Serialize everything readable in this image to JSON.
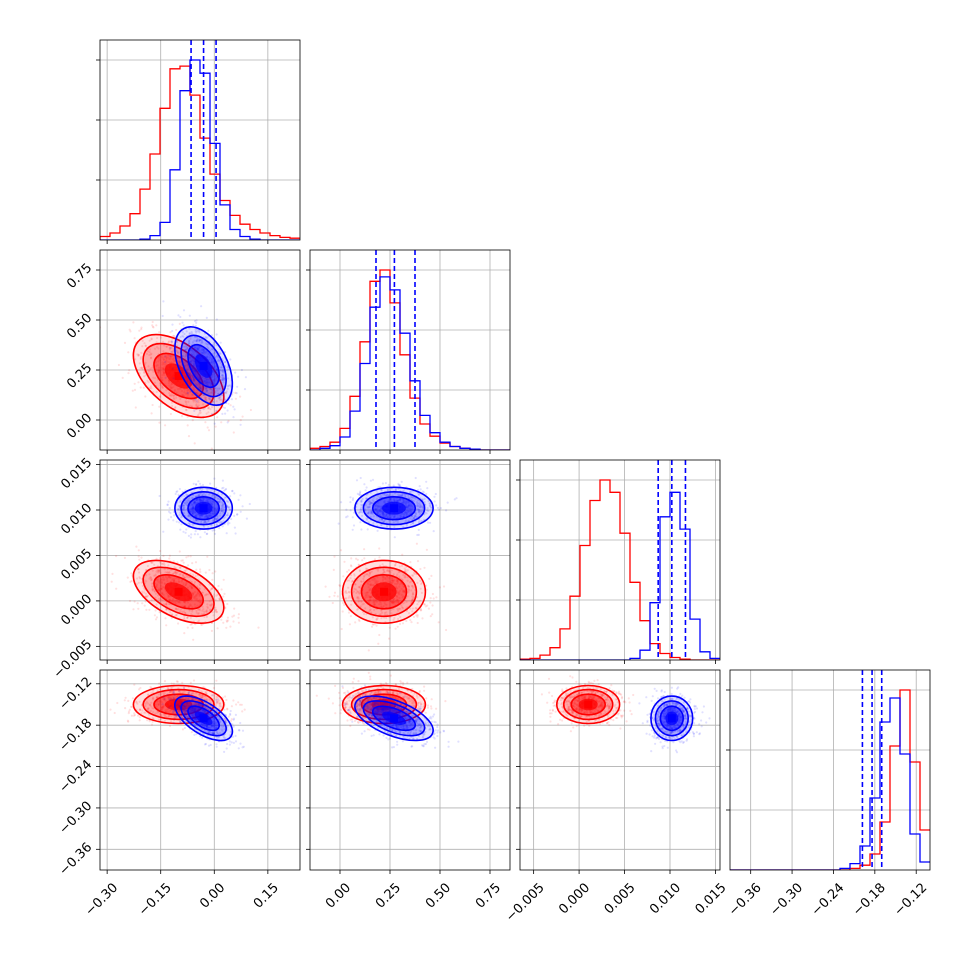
{
  "chart_data": {
    "type": "corner",
    "parameters": 4,
    "grid": true,
    "colors": {
      "red": "#ff0000",
      "blue": "#0000ff",
      "grid": "#b0b0b0"
    },
    "axes": [
      {
        "range": [
          -0.32,
          0.24
        ],
        "ticks": [
          -0.3,
          -0.15,
          0.0,
          0.15
        ],
        "tick_labels": [
          "−0.30",
          "−0.15",
          "0.00",
          "0.15"
        ]
      },
      {
        "range": [
          -0.15,
          0.85
        ],
        "ticks": [
          0.0,
          0.25,
          0.5,
          0.75
        ],
        "tick_labels": [
          "0.00",
          "0.25",
          "0.50",
          "0.75"
        ]
      },
      {
        "range": [
          -0.0065,
          0.0155
        ],
        "ticks": [
          -0.005,
          0.0,
          0.005,
          0.01,
          0.015
        ],
        "tick_labels": [
          "−0.005",
          "0.000",
          "0.005",
          "0.010",
          "0.015"
        ]
      },
      {
        "range": [
          -0.39,
          -0.1
        ],
        "ticks": [
          -0.36,
          -0.3,
          -0.24,
          -0.18,
          -0.12
        ],
        "tick_labels": [
          "−0.36",
          "−0.30",
          "−0.24",
          "−0.18",
          "−0.12"
        ]
      }
    ],
    "series": [
      {
        "name": "red",
        "color": "#ff0000",
        "mean": [
          -0.1,
          0.22,
          0.001,
          -0.15
        ],
        "sd": [
          0.055,
          0.09,
          0.0015,
          0.012
        ],
        "corr": [
          [
            1,
            -0.5,
            -0.5,
            0.0
          ],
          [
            -0.5,
            1,
            0.0,
            0.0
          ],
          [
            -0.5,
            0.0,
            1,
            0.0
          ],
          [
            0.0,
            0.0,
            0.0,
            1
          ]
        ],
        "hist": [
          {
            "edges": [
              -0.32,
              0.24
            ],
            "counts": [
              0.4,
              0.8,
              1.6,
              3.0,
              5.8,
              9.8,
              15.0,
              19.5,
              19.8,
              16.5,
              11.6,
              7.5,
              4.5,
              2.8,
              1.8,
              1.2,
              0.8,
              0.5,
              0.3,
              0.2
            ]
          },
          {
            "edges": [
              -0.15,
              0.85
            ],
            "counts": [
              0.2,
              0.4,
              0.9,
              2.5,
              6.2,
              12.5,
              19.5,
              20.8,
              17.0,
              11.0,
              6.0,
              3.0,
              1.6,
              0.8,
              0.4,
              0.2,
              0.1,
              0.0,
              0.0,
              0.0
            ]
          },
          {
            "edges": [
              -0.0065,
              0.0155
            ],
            "counts": [
              0.1,
              0.2,
              0.6,
              1.5,
              3.8,
              7.8,
              14.0,
              19.5,
              22.0,
              20.5,
              15.5,
              9.5,
              4.8,
              2.0,
              0.8,
              0.3,
              0.1,
              0.0,
              0.0,
              0.0
            ]
          },
          {
            "edges": [
              -0.39,
              -0.1
            ],
            "counts": [
              0.0,
              0.0,
              0.0,
              0.0,
              0.0,
              0.0,
              0.0,
              0.0,
              0.0,
              0.0,
              0.0,
              0.0,
              0.2,
              0.6,
              2.0,
              6.0,
              15.5,
              22.5,
              13.5,
              5.0
            ]
          }
        ]
      },
      {
        "name": "blue",
        "color": "#0000ff",
        "mean": [
          -0.03,
          0.27,
          0.0102,
          -0.17
        ],
        "sd": [
          0.035,
          0.085,
          0.001,
          0.014
        ],
        "corr": [
          [
            1,
            -0.45,
            0.0,
            -0.6
          ],
          [
            -0.45,
            1,
            0.0,
            -0.55
          ],
          [
            0.0,
            0.0,
            1,
            0.0
          ],
          [
            -0.6,
            -0.55,
            0.0,
            1
          ]
        ],
        "quantiles": [
          [
            -0.065,
            -0.03,
            0.005
          ],
          [
            0.18,
            0.272,
            0.375
          ],
          [
            0.0087,
            0.0102,
            0.0117
          ],
          [
            -0.198,
            -0.184,
            -0.17
          ]
        ],
        "hist": [
          {
            "edges": [
              -0.32,
              0.24
            ],
            "counts": [
              0.0,
              0.0,
              0.0,
              0.0,
              0.1,
              0.5,
              2.0,
              8.0,
              17.0,
              20.5,
              19.0,
              11.0,
              4.0,
              1.2,
              0.4,
              0.1,
              0.0,
              0.0,
              0.0,
              0.0
            ]
          },
          {
            "edges": [
              -0.15,
              0.85
            ],
            "counts": [
              0.0,
              0.2,
              0.5,
              1.5,
              4.5,
              10.0,
              16.5,
              20.0,
              18.5,
              13.5,
              8.0,
              4.0,
              2.0,
              0.9,
              0.4,
              0.2,
              0.1,
              0.0,
              0.0,
              0.0
            ]
          },
          {
            "edges": [
              -0.0065,
              0.0155
            ],
            "counts": [
              0.0,
              0.0,
              0.0,
              0.0,
              0.0,
              0.0,
              0.0,
              0.0,
              0.0,
              0.0,
              0.0,
              0.2,
              1.2,
              7.0,
              17.5,
              20.5,
              16.0,
              5.0,
              1.0,
              0.2
            ]
          },
          {
            "edges": [
              -0.39,
              -0.1
            ],
            "counts": [
              0.0,
              0.0,
              0.0,
              0.0,
              0.0,
              0.0,
              0.0,
              0.0,
              0.0,
              0.0,
              0.0,
              0.2,
              0.8,
              3.0,
              9.0,
              18.5,
              21.5,
              14.5,
              4.5,
              1.0
            ]
          }
        ]
      }
    ]
  }
}
